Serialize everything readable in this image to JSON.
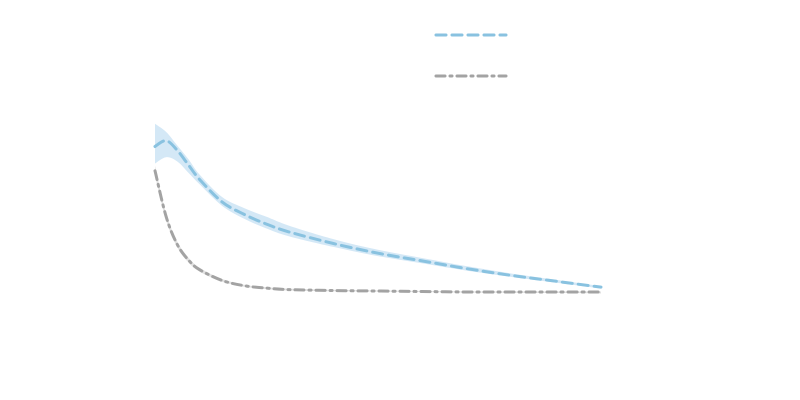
{
  "chart_data": {
    "type": "line",
    "title": "",
    "xlabel": "",
    "ylabel": "",
    "xlim": [
      0,
      10
    ],
    "ylim": [
      0,
      4
    ],
    "grid": false,
    "legend": {
      "position": "top-right",
      "entries": [
        "",
        ""
      ]
    },
    "x": [
      0,
      0.25,
      0.5,
      0.75,
      1.0,
      1.5,
      2.0,
      2.5,
      3.0,
      4.0,
      5.0,
      6.0,
      7.0,
      8.0,
      9.0,
      10.0
    ],
    "series": [
      {
        "color": "#89c2e0",
        "band_color": "#d4e8f6",
        "line_style": "dashed",
        "values": [
          3.0,
          3.12,
          2.92,
          2.62,
          2.32,
          1.86,
          1.6,
          1.4,
          1.24,
          1.0,
          0.8,
          0.64,
          0.48,
          0.34,
          0.22,
          0.1
        ],
        "lower": [
          2.65,
          2.78,
          2.69,
          2.46,
          2.22,
          1.78,
          1.51,
          1.31,
          1.15,
          0.93,
          0.74,
          0.59,
          0.44,
          0.31,
          0.19,
          0.07
        ],
        "upper": [
          3.47,
          3.3,
          3.02,
          2.74,
          2.42,
          1.96,
          1.73,
          1.55,
          1.37,
          1.09,
          0.87,
          0.7,
          0.53,
          0.38,
          0.25,
          0.12
        ]
      },
      {
        "color": "#a3a3a3",
        "band_color": "#e2e2e2",
        "line_style": "dash-dot",
        "values": [
          2.5,
          1.55,
          0.98,
          0.66,
          0.46,
          0.24,
          0.13,
          0.08,
          0.05,
          0.03,
          0.02,
          0.01,
          0.0,
          0.0,
          0.0,
          0.0
        ],
        "lower": [
          2.4,
          1.47,
          0.92,
          0.61,
          0.42,
          0.21,
          0.11,
          0.06,
          0.03,
          0.015,
          0.01,
          0.0,
          -0.01,
          -0.015,
          -0.02,
          -0.03
        ],
        "upper": [
          2.6,
          1.62,
          1.04,
          0.71,
          0.5,
          0.27,
          0.15,
          0.1,
          0.07,
          0.045,
          0.03,
          0.02,
          0.01,
          0.01,
          0.01,
          0.01
        ]
      }
    ]
  }
}
